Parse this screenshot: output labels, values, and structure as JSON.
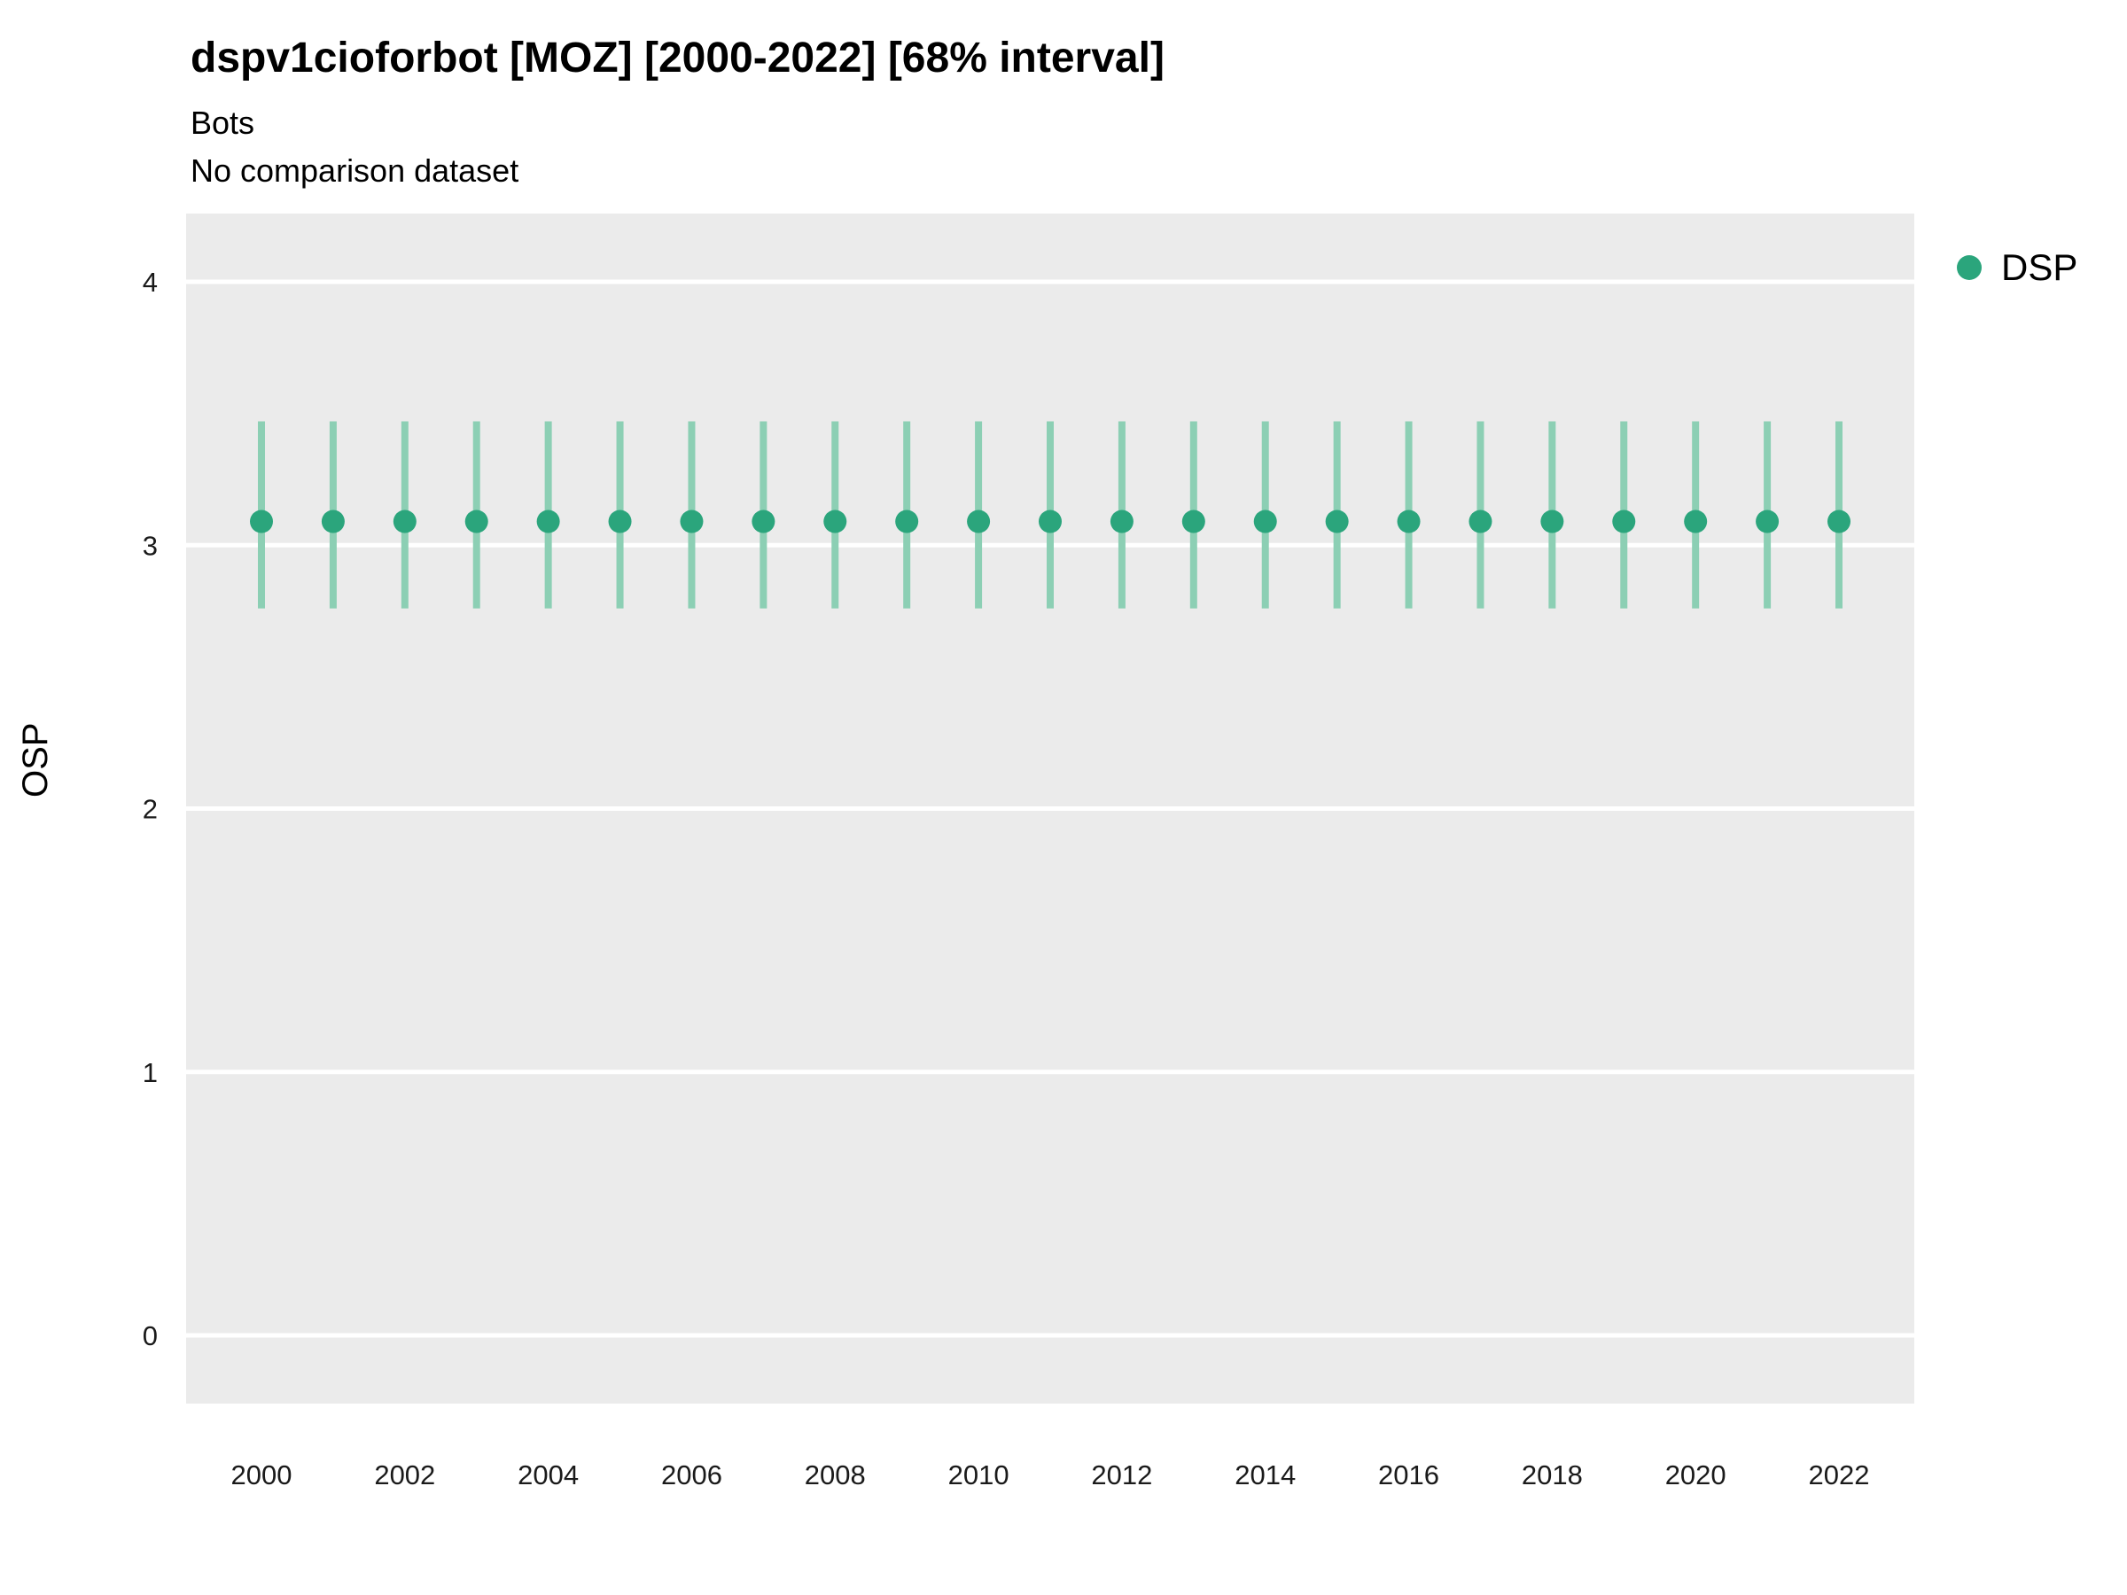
{
  "header": {
    "title": "dspv1cioforbot [MOZ] [2000-2022] [68% interval]",
    "subtitle": "Bots",
    "dataset_note": "No comparison dataset"
  },
  "legend": {
    "label": "DSP"
  },
  "chart_data": {
    "type": "scatter",
    "title": "dspv1cioforbot [MOZ] [2000-2022] [68% interval]",
    "subtitle": "Bots",
    "note": "No comparison dataset",
    "xlabel": "",
    "ylabel": "OSP",
    "x": [
      2000,
      2001,
      2002,
      2003,
      2004,
      2005,
      2006,
      2007,
      2008,
      2009,
      2010,
      2011,
      2012,
      2013,
      2014,
      2015,
      2016,
      2017,
      2018,
      2019,
      2020,
      2021,
      2022
    ],
    "series": [
      {
        "name": "DSP",
        "estimate": [
          3.09,
          3.09,
          3.09,
          3.09,
          3.09,
          3.09,
          3.09,
          3.09,
          3.09,
          3.09,
          3.09,
          3.09,
          3.09,
          3.09,
          3.09,
          3.09,
          3.09,
          3.09,
          3.09,
          3.09,
          3.09,
          3.09,
          3.09
        ],
        "lower": [
          2.76,
          2.76,
          2.76,
          2.76,
          2.76,
          2.76,
          2.76,
          2.76,
          2.76,
          2.76,
          2.76,
          2.76,
          2.76,
          2.76,
          2.76,
          2.76,
          2.76,
          2.76,
          2.76,
          2.76,
          2.76,
          2.76,
          2.76
        ],
        "upper": [
          3.47,
          3.47,
          3.47,
          3.47,
          3.47,
          3.47,
          3.47,
          3.47,
          3.47,
          3.47,
          3.47,
          3.47,
          3.47,
          3.47,
          3.47,
          3.47,
          3.47,
          3.47,
          3.47,
          3.47,
          3.47,
          3.47,
          3.47
        ]
      }
    ],
    "interval_label": "68% interval",
    "xticks": [
      2000,
      2002,
      2004,
      2006,
      2008,
      2010,
      2012,
      2014,
      2016,
      2018,
      2020,
      2022
    ],
    "yticks": [
      0,
      1,
      2,
      3,
      4
    ],
    "ylim": [
      -0.26,
      4.26
    ],
    "grid": "major-horizontal",
    "legend_position": "right",
    "colors": {
      "point": "#2BA57C",
      "interval": "#8CCFB4",
      "panel_bg": "#EBEBEB",
      "grid": "#FFFFFF",
      "tick_text": "#1a1a1a"
    }
  }
}
